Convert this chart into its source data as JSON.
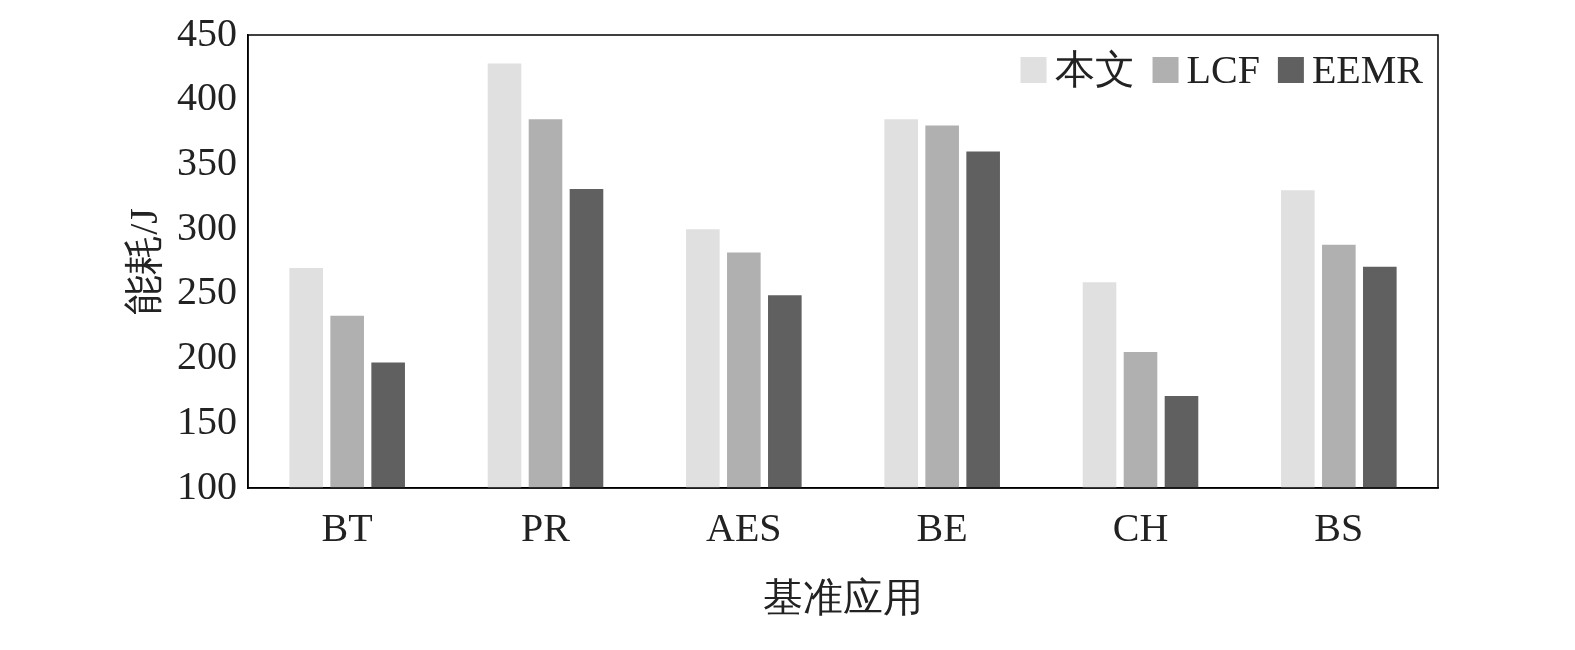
{
  "chart_data": {
    "type": "bar",
    "xlabel": "基准应用",
    "ylabel": "能耗/J",
    "categories": [
      "BT",
      "PR",
      "AES",
      "BE",
      "CH",
      "BS"
    ],
    "series": [
      {
        "name": "本文",
        "color": "#e0e0e0",
        "values": [
          270,
          428,
          300,
          385,
          259,
          330
        ]
      },
      {
        "name": "LCF",
        "color": "#b0b0b0",
        "values": [
          233,
          385,
          282,
          380,
          205,
          288
        ]
      },
      {
        "name": "EEMR",
        "color": "#606060",
        "values": [
          197,
          331,
          249,
          360,
          171,
          271
        ]
      }
    ],
    "ylim": [
      100,
      450
    ],
    "yticks": [
      100,
      150,
      200,
      250,
      300,
      350,
      400,
      450
    ],
    "grid": false,
    "legend": "top right"
  }
}
